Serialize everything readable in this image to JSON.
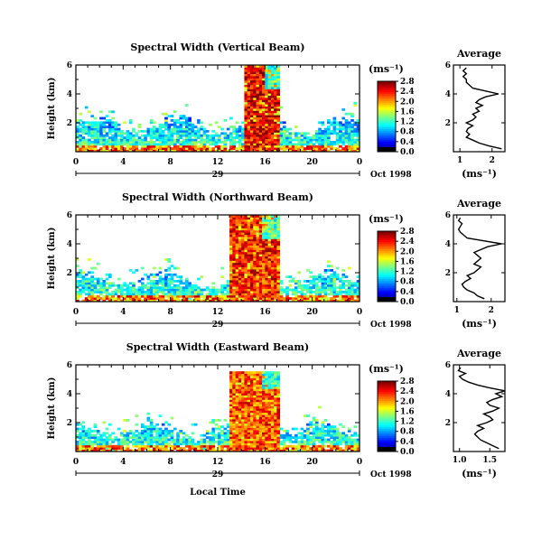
{
  "chart_data": [
    {
      "type": "heatmap",
      "title": "Spectral Width (Vertical Beam)",
      "ylabel": "Height (km)",
      "y_ticks": [
        "2",
        "4",
        "6"
      ],
      "ylim": [
        0,
        6
      ],
      "x_ticks": [
        "0",
        "4",
        "8",
        "12",
        "16",
        "20",
        "0"
      ],
      "xlim": [
        0,
        24
      ],
      "day_label": "29",
      "date_label": "Oct 1998",
      "xlabel": "",
      "colorbar": {
        "unit_label": "(ms⁻¹)",
        "ticks": [
          "0.0",
          "0.4",
          "0.8",
          "1.2",
          "1.6",
          "2.0",
          "2.4",
          "2.8"
        ]
      },
      "pattern": {
        "base_max_km": 2.3,
        "strong_start_h": 14.1,
        "strong_end_h": 17.2,
        "strong_top_km": 6.0,
        "high_level": 0.9
      },
      "average_profile": {
        "title": "Average",
        "xlabel": "(ms⁻¹)",
        "x_ticks": [
          "1",
          "2"
        ],
        "xlim": [
          0.8,
          2.4
        ],
        "y_ticks": [
          "2",
          "4",
          "6"
        ],
        "height_km": [
          0.2,
          0.4,
          0.6,
          0.8,
          1.0,
          1.2,
          1.4,
          1.6,
          1.8,
          2.0,
          2.2,
          2.4,
          2.6,
          2.8,
          3.0,
          3.2,
          3.4,
          3.6,
          3.8,
          4.0,
          4.2,
          4.4,
          4.6,
          4.8,
          5.0,
          5.2,
          5.4,
          5.6,
          5.8
        ],
        "width_ms": [
          2.3,
          1.9,
          1.6,
          1.4,
          1.2,
          1.3,
          1.2,
          1.25,
          1.4,
          1.2,
          1.4,
          1.5,
          1.4,
          1.6,
          1.5,
          1.7,
          1.5,
          1.6,
          1.8,
          2.2,
          1.8,
          1.4,
          1.3,
          1.2,
          1.2,
          1.1,
          1.2,
          1.1,
          1.2
        ]
      }
    },
    {
      "type": "heatmap",
      "title": "Spectral Width (Northward Beam)",
      "ylabel": "Height (km)",
      "y_ticks": [
        "2",
        "4",
        "6"
      ],
      "ylim": [
        0,
        6
      ],
      "x_ticks": [
        "0",
        "4",
        "8",
        "12",
        "16",
        "20",
        "0"
      ],
      "xlim": [
        0,
        24
      ],
      "day_label": "29",
      "date_label": "Oct 1998",
      "xlabel": "",
      "colorbar": {
        "unit_label": "(ms⁻¹)",
        "ticks": [
          "0.0",
          "0.4",
          "0.8",
          "1.2",
          "1.6",
          "2.0",
          "2.4",
          "2.8"
        ]
      },
      "pattern": {
        "base_max_km": 2.0,
        "strong_start_h": 13.0,
        "strong_end_h": 17.0,
        "strong_top_km": 6.0,
        "high_level": 0.85
      },
      "average_profile": {
        "title": "Average",
        "xlabel": "(ms⁻¹)",
        "x_ticks": [
          "1",
          "2"
        ],
        "xlim": [
          0.9,
          2.4
        ],
        "y_ticks": [
          "2",
          "4",
          "6"
        ],
        "height_km": [
          0.2,
          0.4,
          0.6,
          0.8,
          1.0,
          1.2,
          1.4,
          1.6,
          1.8,
          2.0,
          2.2,
          2.4,
          2.6,
          2.8,
          3.0,
          3.2,
          3.4,
          3.6,
          3.8,
          4.0,
          4.2,
          4.4,
          4.6,
          4.8,
          5.0,
          5.2,
          5.4,
          5.6,
          5.8
        ],
        "width_ms": [
          1.8,
          1.6,
          1.5,
          1.3,
          1.2,
          1.15,
          1.25,
          1.4,
          1.3,
          1.5,
          1.6,
          1.7,
          1.5,
          1.6,
          1.7,
          1.6,
          1.5,
          1.7,
          1.9,
          2.3,
          1.8,
          1.3,
          1.2,
          1.1,
          1.05,
          1.1,
          1.15,
          1.05,
          1.1
        ]
      }
    },
    {
      "type": "heatmap",
      "title": "Spectral Width (Eastward Beam)",
      "ylabel": "Height (km)",
      "y_ticks": [
        "2",
        "4",
        "6"
      ],
      "ylim": [
        0,
        6
      ],
      "x_ticks": [
        "0",
        "4",
        "8",
        "12",
        "16",
        "20",
        "0"
      ],
      "xlim": [
        0,
        24
      ],
      "day_label": "29",
      "date_label": "Oct 1998",
      "xlabel": "Local Time",
      "colorbar": {
        "unit_label": "(ms⁻¹)",
        "ticks": [
          "0.0",
          "0.4",
          "0.8",
          "1.2",
          "1.6",
          "2.0",
          "2.4",
          "2.8"
        ]
      },
      "pattern": {
        "base_max_km": 1.9,
        "strong_start_h": 12.8,
        "strong_end_h": 17.0,
        "strong_top_km": 5.5,
        "high_level": 0.8
      },
      "average_profile": {
        "title": "Average",
        "xlabel": "(ms⁻¹)",
        "x_ticks": [
          "1.0",
          "1.5"
        ],
        "xlim": [
          0.9,
          1.75
        ],
        "y_ticks": [
          "2",
          "4",
          "6"
        ],
        "height_km": [
          0.2,
          0.4,
          0.6,
          0.8,
          1.0,
          1.2,
          1.4,
          1.6,
          1.8,
          2.0,
          2.2,
          2.4,
          2.6,
          2.8,
          3.0,
          3.2,
          3.4,
          3.6,
          3.8,
          4.0,
          4.2,
          4.4,
          4.6,
          4.8,
          5.0,
          5.2,
          5.4,
          5.6,
          5.8
        ],
        "width_ms": [
          1.65,
          1.55,
          1.45,
          1.35,
          1.3,
          1.25,
          1.3,
          1.4,
          1.3,
          1.45,
          1.55,
          1.5,
          1.4,
          1.55,
          1.65,
          1.5,
          1.45,
          1.55,
          1.7,
          1.6,
          1.75,
          1.5,
          1.3,
          1.15,
          1.05,
          1.0,
          1.1,
          0.98,
          1.02
        ]
      }
    }
  ]
}
